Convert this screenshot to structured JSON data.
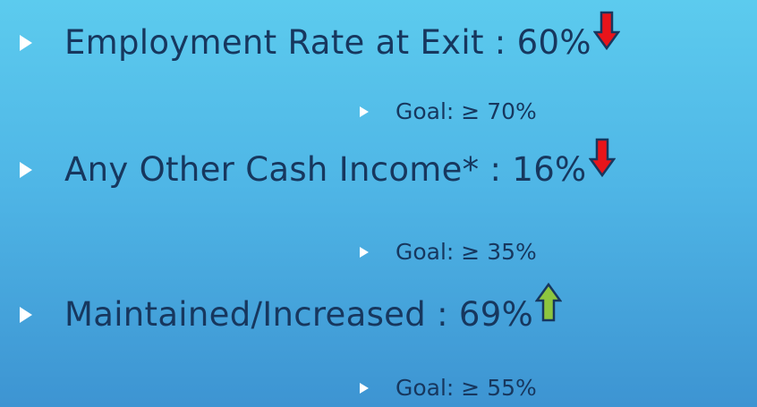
{
  "items": [
    {
      "text": "Employment Rate at Exit : 60%",
      "goal": "Goal: ≥ 70%"
    },
    {
      "text": "Any Other Cash Income* : 16%",
      "goal": "Goal: ≥ 35%"
    },
    {
      "text": "Maintained/Increased : 69%",
      "goal": "Goal: ≥ 55%"
    }
  ]
}
